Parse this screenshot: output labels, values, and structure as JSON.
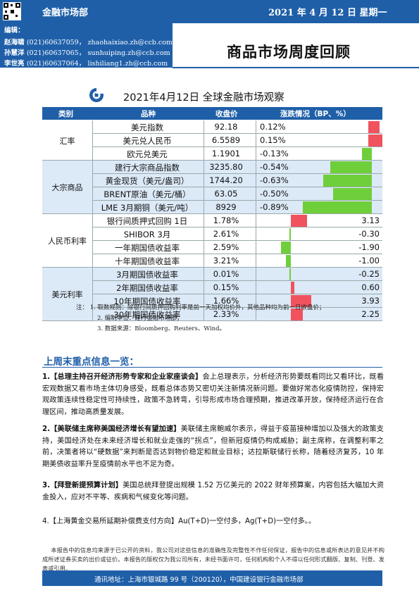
{
  "header": {
    "department": "金融市场部",
    "date": "2021 年 4 月 12 日 星期一"
  },
  "editors": {
    "label": "编辑：",
    "people": [
      {
        "name": "赵海啸",
        "phone": "(021)60637059，",
        "email": "zhaohaixiao.zh@ccb.com"
      },
      {
        "name": "孙慧洋",
        "phone": "(021)60637065，",
        "email": "sunhuiping.zh@ccb.com"
      },
      {
        "name": "李世亮",
        "phone": "(021)60637064，",
        "email": "lishiliang1.zh@ccb.com"
      }
    ]
  },
  "report_title": "商品市场周度回顾",
  "table": {
    "title": "2021年4月12日  全球金融市场观察",
    "columns": [
      "类别",
      "品种",
      "收盘价",
      "涨跌情况（BP、%）"
    ],
    "groups": [
      {
        "name": "汇率",
        "rows": [
          {
            "item": "美元指数",
            "close": "92.18",
            "change": "0.12%",
            "value": 0.12
          },
          {
            "item": "美元兑人民币",
            "close": "6.5589",
            "change": "0.15%",
            "value": 0.15
          },
          {
            "item": "欧元兑美元",
            "close": "1.1901",
            "change": "-0.13%",
            "value": -0.13
          }
        ]
      },
      {
        "name": "大宗商品",
        "rows": [
          {
            "item": "建行大宗商品指数",
            "close": "3235.80",
            "change": "-0.54%",
            "value": -0.54
          },
          {
            "item": "黄金现货（美元/盎司）",
            "close": "1744.20",
            "change": "-0.63%",
            "value": -0.63
          },
          {
            "item": "BRENT原油（美元/桶）",
            "close": "63.05",
            "change": "-0.50%",
            "value": -0.5
          },
          {
            "item": "LME 3月期铜（美元/吨）",
            "close": "8929",
            "change": "-0.89%",
            "value": -0.89
          }
        ]
      },
      {
        "name": "人民币利率",
        "rows": [
          {
            "item": "银行间质押式回购 1日",
            "close": "1.78%",
            "change": "3.13",
            "value": 3.13
          },
          {
            "item": "SHIBOR 3月",
            "close": "2.61%",
            "change": "-0.30",
            "value": -0.3
          },
          {
            "item": "一年期国债收益率",
            "close": "2.59%",
            "change": "-1.90",
            "value": -1.9
          },
          {
            "item": "十年期国债收益率",
            "close": "3.21%",
            "change": "-1.00",
            "value": -1.0
          }
        ]
      },
      {
        "name": "美元利率",
        "rows": [
          {
            "item": "3月期国债收益率",
            "close": "0.01%",
            "change": "-0.25",
            "value": -0.25
          },
          {
            "item": "2年期国债收益率",
            "close": "0.15%",
            "change": "0.60",
            "value": 0.6
          },
          {
            "item": "10年期国债收益率",
            "close": "1.66%",
            "change": "3.93",
            "value": 3.93
          },
          {
            "item": "30年期国债收益率",
            "close": "2.33%",
            "change": "2.25",
            "value": 2.25
          }
        ]
      }
    ],
    "colors": {
      "up": "#f0525e",
      "down": "#6fcf3a",
      "header": "#1f5fa8",
      "group_fill": "#dce9f7"
    }
  },
  "notes": [
    "注：  1. 取数规则：除银行间质押回购利率是前一天加权均价外，其他品种均为前一日收盘价；",
    "2. 编制单位：建行金融市场部；",
    "3. 数据来源：Bloomberg、Reuters、Wind。"
  ],
  "weekly_title": "上周末重点信息一览：",
  "items": [
    {
      "num": "1.",
      "head": "【总理主持召开经济形势专家和企业家座谈会】",
      "body": "会上总理表示，分析经济形势要既看同比又看环比，既看宏观数据又看市场主体切身感受，既看总体态势又密切关注新情况新问题。要做好常态化疫情防控，保持宏观政策连续性稳定性可持续性，政策不急转弯，引导形成市场合理预期，推进改革开放，保持经济运行在合理区间，推动高质量发展。"
    },
    {
      "num": "2.",
      "head": "【美联储主席称美国经济增长有望加速】",
      "body": "美联储主席鲍威尔表示，得益于疫苗接种增加以及强大的政策支持，美国经济处在未来经济增长和就业走强的“拐点”，但新冠疫情仍构成威胁；副主席称，在调整利率之前，决策者将以“硬数据”来判断是否达到物价稳定和就业目标；达拉斯联储行长称，随着经济复苏，10 年期美债收益率升至疫情前水平也不足为奇。"
    },
    {
      "num": "3.",
      "head": "【拜登新提预算计划】",
      "body": "美国总统拜登提出规模 1.52 万亿美元的 2022 财年预算案，内容包括大幅加大资金投入，应对不平等、疾病和气候变化等问题。"
    },
    {
      "num": "4.",
      "head": "【上海黄金交易所延期补偿费支付方向】",
      "body": "Au(T+D)一空付多，Ag(T+D)一空付多。。"
    }
  ],
  "disclaimer": "本报告中的信息均来源于已公开的资料，我公司对这些信息的准确性及完整性不作任何保证，报告中的信息或所表达的意见并不构成所述证券买卖的出价或征价。本报告的版权仅为我公司所有，未经书面许可，任何机构和个人不得以任何形式翻版、复制、刊登、发表或引用。",
  "footer": {
    "label": "通讯地址：",
    "address": "上海市银城路 99 号（200120），中国建设银行金融市场部"
  }
}
